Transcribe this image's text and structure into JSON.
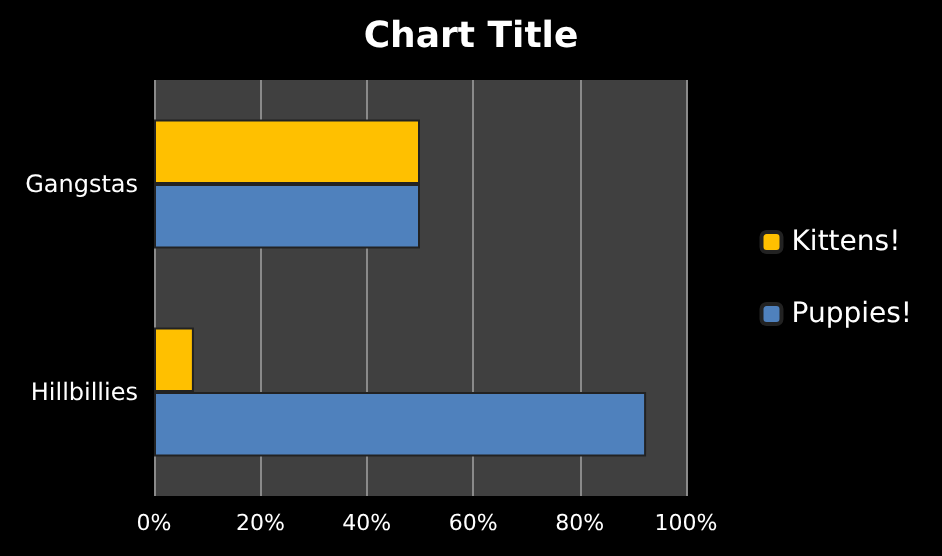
{
  "chart_data": {
    "type": "bar",
    "orientation": "horizontal",
    "title": "Chart Title",
    "categories": [
      "Gangstas",
      "Hillbillies"
    ],
    "series": [
      {
        "name": "Kittens!",
        "color": "#ffc000",
        "values": [
          50,
          7.5
        ]
      },
      {
        "name": "Puppies!",
        "color": "#4f81bd",
        "values": [
          50,
          92.5
        ]
      }
    ],
    "xlim": [
      0,
      100
    ],
    "xticks": [
      {
        "value": 0,
        "label": "0%"
      },
      {
        "value": 20,
        "label": "20%"
      },
      {
        "value": 40,
        "label": "40%"
      },
      {
        "value": 60,
        "label": "60%"
      },
      {
        "value": 80,
        "label": "80%"
      },
      {
        "value": 100,
        "label": "100%"
      }
    ],
    "grid": "x",
    "legend": "right"
  }
}
